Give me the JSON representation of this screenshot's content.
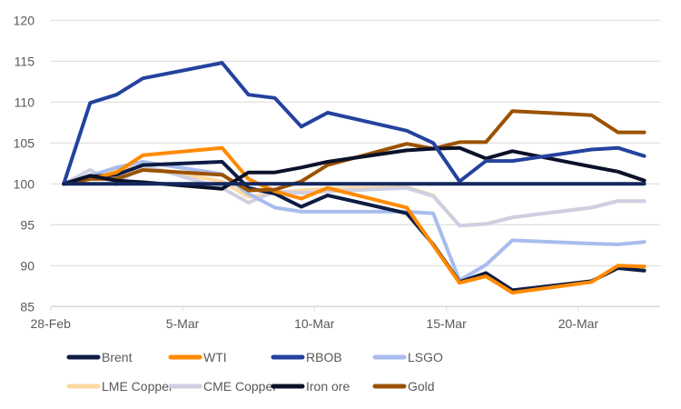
{
  "chart_data": {
    "type": "line",
    "title": "",
    "xlabel": "",
    "ylabel": "",
    "x_unit": "days since 28-Feb",
    "x": [
      1,
      2,
      3,
      4,
      7,
      8,
      9,
      10,
      11,
      14,
      15,
      16,
      17,
      18,
      21,
      22,
      23
    ],
    "x_dates": [
      "1-Mar",
      "2-Mar",
      "3-Mar",
      "4-Mar",
      "7-Mar",
      "8-Mar",
      "9-Mar",
      "10-Mar",
      "11-Mar",
      "14-Mar",
      "15-Mar",
      "16-Mar",
      "17-Mar",
      "18-Mar",
      "21-Mar",
      "22-Mar",
      "23-Mar"
    ],
    "xlim": [
      0,
      23.1
    ],
    "x_ticks": [
      0,
      5,
      10,
      15,
      20
    ],
    "x_tick_labels": [
      "28-Feb",
      "5-Mar",
      "10-Mar",
      "15-Mar",
      "20-Mar"
    ],
    "ylim": [
      85,
      120
    ],
    "y_ticks": [
      85,
      90,
      95,
      100,
      105,
      110,
      115,
      120
    ],
    "y_tick_labels": [
      "85",
      "90",
      "95",
      "100",
      "105",
      "110",
      "115",
      "120"
    ],
    "grid": true,
    "legend_position": "bottom",
    "reference_line": {
      "value": 100,
      "color": "#14285e"
    },
    "series": [
      {
        "name": "LME Copper",
        "color": "#fdd9a3",
        "values": [
          100,
          101.0,
          101.6,
          102.1,
          100.3,
          98.4,
          98.9,
          99.2,
          99.4,
          99.6,
          98.6,
          94.9,
          95.1,
          95.9,
          97.1,
          97.9,
          97.9
        ]
      },
      {
        "name": "CME Copper",
        "color": "#cfcfe2",
        "values": [
          100,
          101.7,
          99.9,
          102.3,
          99.5,
          97.7,
          99.1,
          98.9,
          99.1,
          99.5,
          98.5,
          94.9,
          95.1,
          95.9,
          97.1,
          97.9,
          97.9
        ]
      },
      {
        "name": "LSGO",
        "color": "#a8bcee",
        "values": [
          100,
          101.0,
          102.0,
          102.7,
          101.2,
          98.8,
          97.1,
          96.6,
          96.6,
          96.6,
          96.4,
          88.2,
          90.1,
          93.1,
          92.7,
          92.6,
          92.9
        ]
      },
      {
        "name": "Brent",
        "color": "#0e1c44",
        "values": [
          100,
          100.9,
          101.1,
          102.3,
          102.7,
          99.5,
          98.8,
          97.2,
          98.6,
          96.4,
          92.6,
          88.0,
          89.1,
          87.0,
          88.1,
          89.7,
          89.4
        ]
      },
      {
        "name": "WTI",
        "color": "#ff8a00",
        "values": [
          100,
          100.6,
          101.4,
          103.5,
          104.4,
          100.6,
          99.1,
          98.2,
          99.5,
          97.1,
          92.5,
          87.9,
          88.7,
          86.7,
          88.0,
          90.0,
          89.9
        ]
      },
      {
        "name": "Gold",
        "color": "#9b5200",
        "values": [
          100,
          100.6,
          100.6,
          101.7,
          101.1,
          99.2,
          99.3,
          100.3,
          102.3,
          104.9,
          104.3,
          105.1,
          105.1,
          108.9,
          108.4,
          106.3,
          106.3
        ]
      },
      {
        "name": "Iron ore",
        "color": "#0b1128",
        "values": [
          100,
          101.0,
          100.4,
          100.2,
          99.4,
          101.4,
          101.4,
          102.0,
          102.7,
          104.1,
          104.3,
          104.4,
          103.1,
          104.0,
          102.1,
          101.5,
          100.4
        ]
      },
      {
        "name": "RBOB",
        "color": "#24429e",
        "values": [
          100,
          109.9,
          110.9,
          112.9,
          114.8,
          110.9,
          110.5,
          107.0,
          108.7,
          106.5,
          105.0,
          100.3,
          102.8,
          102.8,
          104.2,
          104.4,
          103.4
        ]
      }
    ],
    "legend": [
      "Brent",
      "WTI",
      "RBOB",
      "LSGO",
      "LME Copper",
      "CME Copper",
      "Iron ore",
      "Gold"
    ]
  }
}
